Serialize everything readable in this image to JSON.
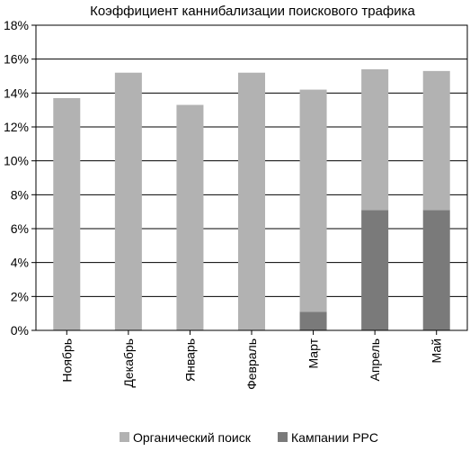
{
  "chart_data": {
    "type": "bar",
    "stacked": true,
    "title": "Коэффициент каннибализации поискового трафика",
    "xlabel": "",
    "ylabel": "",
    "categories": [
      "Ноябрь",
      "Декабрь",
      "Январь",
      "Февраль",
      "Март",
      "Апрель",
      "Май"
    ],
    "ylim": [
      0,
      18
    ],
    "yticks": [
      "0%",
      "2%",
      "4%",
      "6%",
      "8%",
      "10%",
      "12%",
      "14%",
      "16%",
      "18%"
    ],
    "grid": true,
    "legend_position": "bottom",
    "series": [
      {
        "name": "Кампании PPC",
        "values": [
          0,
          0,
          0,
          0,
          1.1,
          7.1,
          7.1
        ],
        "color": "#7a7a7a"
      },
      {
        "name": "Органический поиск",
        "values": [
          13.7,
          15.2,
          13.3,
          15.2,
          13.1,
          8.3,
          8.2
        ],
        "color": "#b2b2b2"
      }
    ]
  }
}
